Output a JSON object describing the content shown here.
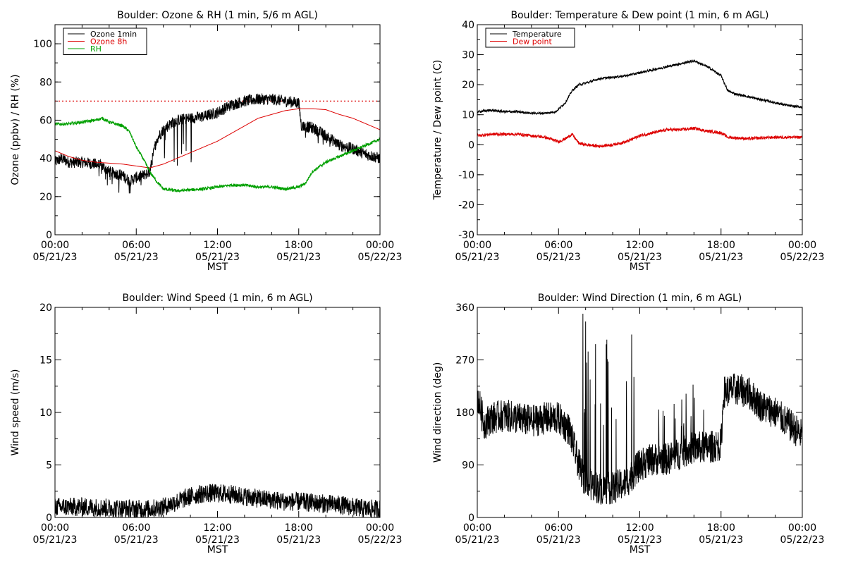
{
  "colors": {
    "black": "#000000",
    "red": "#dd0000",
    "green": "#00a000"
  },
  "chart_data": [
    {
      "id": "ozone_rh",
      "type": "line",
      "title": "Boulder: Ozone & RH (1 min, 5/6 m AGL)",
      "ylabel": "Ozone (ppbv) / RH (%)",
      "xlabel": "MST",
      "xlim_hours": [
        0,
        24
      ],
      "ylim": [
        0,
        110
      ],
      "yticks": [
        0,
        20,
        40,
        60,
        80,
        100
      ],
      "xticks": [
        {
          "time": "00:00",
          "date": "05/21/23"
        },
        {
          "time": "06:00",
          "date": "05/21/23"
        },
        {
          "time": "12:00",
          "date": "05/21/23"
        },
        {
          "time": "18:00",
          "date": "05/21/23"
        },
        {
          "time": "00:00",
          "date": "05/22/23"
        }
      ],
      "reference_line": {
        "y": 70,
        "color": "#dd0000",
        "style": "dotted"
      },
      "legend": "top-left",
      "series": [
        {
          "name": "Ozone 1min",
          "color": "#000000",
          "noise": 3,
          "spikes": [
            [
              7.5,
              10.5,
              -15,
              0.06
            ],
            [
              3.0,
              7.0,
              -5,
              0.05
            ],
            [
              18.5,
              21.0,
              -4,
              0.05
            ]
          ],
          "points": [
            [
              0,
              38
            ],
            [
              0.5,
              40
            ],
            [
              1,
              38
            ],
            [
              2,
              38
            ],
            [
              3,
              37
            ],
            [
              3.5,
              36
            ],
            [
              4,
              33
            ],
            [
              5,
              31
            ],
            [
              5.5,
              28
            ],
            [
              6,
              30
            ],
            [
              6.5,
              31
            ],
            [
              7,
              33
            ],
            [
              7.2,
              40
            ],
            [
              7.5,
              50
            ],
            [
              8,
              55
            ],
            [
              8.5,
              58
            ],
            [
              9,
              60
            ],
            [
              10,
              61
            ],
            [
              11,
              62
            ],
            [
              12,
              64
            ],
            [
              13,
              68
            ],
            [
              14,
              70
            ],
            [
              15,
              71
            ],
            [
              16,
              71
            ],
            [
              17,
              70
            ],
            [
              18,
              69
            ],
            [
              18.2,
              57
            ],
            [
              19,
              56
            ],
            [
              20,
              52
            ],
            [
              21,
              47
            ],
            [
              22,
              45
            ],
            [
              23,
              42
            ],
            [
              24,
              40
            ]
          ]
        },
        {
          "name": "Ozone 8h",
          "color": "#dd0000",
          "noise": 0,
          "points": [
            [
              0,
              44
            ],
            [
              1,
              41
            ],
            [
              2,
              39
            ],
            [
              3,
              38
            ],
            [
              4,
              37.5
            ],
            [
              5,
              37
            ],
            [
              6,
              36
            ],
            [
              7,
              35
            ],
            [
              8,
              37
            ],
            [
              9,
              40
            ],
            [
              10,
              43
            ],
            [
              11,
              46
            ],
            [
              12,
              49
            ],
            [
              13,
              53
            ],
            [
              14,
              57
            ],
            [
              15,
              61
            ],
            [
              16,
              63
            ],
            [
              17,
              65
            ],
            [
              18,
              66
            ],
            [
              19,
              66
            ],
            [
              20,
              65.5
            ],
            [
              21,
              63
            ],
            [
              22,
              61
            ],
            [
              23,
              58
            ],
            [
              24,
              55
            ]
          ]
        },
        {
          "name": "RH",
          "color": "#00a000",
          "noise": 0.8,
          "points": [
            [
              0,
              58
            ],
            [
              1,
              58
            ],
            [
              2,
              59
            ],
            [
              3,
              60
            ],
            [
              3.5,
              61
            ],
            [
              4,
              59
            ],
            [
              5,
              57
            ],
            [
              5.5,
              54
            ],
            [
              6,
              46
            ],
            [
              6.5,
              40
            ],
            [
              7,
              33
            ],
            [
              7.5,
              28
            ],
            [
              8,
              24
            ],
            [
              9,
              23
            ],
            [
              10,
              23.5
            ],
            [
              11,
              24
            ],
            [
              12,
              25
            ],
            [
              13,
              26
            ],
            [
              14,
              26
            ],
            [
              15,
              25
            ],
            [
              16,
              25
            ],
            [
              17,
              24
            ],
            [
              18,
              25
            ],
            [
              18.5,
              27
            ],
            [
              19,
              33
            ],
            [
              20,
              38
            ],
            [
              21,
              41
            ],
            [
              22,
              44
            ],
            [
              23,
              47
            ],
            [
              24,
              50
            ]
          ]
        }
      ]
    },
    {
      "id": "temp_dew",
      "type": "line",
      "title": "Boulder: Temperature & Dew point (1 min, 6 m AGL)",
      "ylabel": "Temperature / Dew point (C)",
      "xlabel": "MST",
      "xlim_hours": [
        0,
        24
      ],
      "ylim": [
        -30,
        40
      ],
      "yticks": [
        -30,
        -20,
        -10,
        0,
        10,
        20,
        30,
        40
      ],
      "xticks": [
        {
          "time": "00:00",
          "date": "05/21/23"
        },
        {
          "time": "06:00",
          "date": "05/21/23"
        },
        {
          "time": "12:00",
          "date": "05/21/23"
        },
        {
          "time": "18:00",
          "date": "05/21/23"
        },
        {
          "time": "00:00",
          "date": "05/22/23"
        }
      ],
      "legend": "top-left",
      "series": [
        {
          "name": "Temperature",
          "color": "#000000",
          "noise": 0.4,
          "points": [
            [
              0,
              11
            ],
            [
              1,
              11.5
            ],
            [
              2,
              11
            ],
            [
              3,
              11
            ],
            [
              4,
              10.5
            ],
            [
              5,
              10.5
            ],
            [
              5.8,
              11
            ],
            [
              6.5,
              14
            ],
            [
              7,
              18
            ],
            [
              7.5,
              20
            ],
            [
              8,
              20.5
            ],
            [
              9,
              22
            ],
            [
              10,
              22.5
            ],
            [
              11,
              23
            ],
            [
              12,
              24
            ],
            [
              13,
              25
            ],
            [
              14,
              26
            ],
            [
              15,
              27
            ],
            [
              16,
              28
            ],
            [
              17,
              26
            ],
            [
              18,
              23
            ],
            [
              18.5,
              18
            ],
            [
              19,
              17
            ],
            [
              20,
              16
            ],
            [
              21,
              15
            ],
            [
              22,
              14
            ],
            [
              23,
              13
            ],
            [
              24,
              12.5
            ]
          ]
        },
        {
          "name": "Dew point",
          "color": "#dd0000",
          "noise": 0.5,
          "points": [
            [
              0,
              3
            ],
            [
              1,
              3.5
            ],
            [
              2,
              3.5
            ],
            [
              3,
              3.5
            ],
            [
              4,
              3
            ],
            [
              5,
              2.5
            ],
            [
              6,
              1
            ],
            [
              6.5,
              2
            ],
            [
              7,
              3.5
            ],
            [
              7.5,
              0.5
            ],
            [
              8,
              0
            ],
            [
              9,
              -0.5
            ],
            [
              10,
              0
            ],
            [
              11,
              1
            ],
            [
              12,
              3
            ],
            [
              13,
              4
            ],
            [
              14,
              5
            ],
            [
              15,
              5
            ],
            [
              16,
              5.5
            ],
            [
              17,
              4.5
            ],
            [
              18,
              4
            ],
            [
              18.5,
              2.5
            ],
            [
              20,
              2
            ],
            [
              22,
              2.5
            ],
            [
              24,
              2.5
            ]
          ]
        }
      ]
    },
    {
      "id": "wind_speed",
      "type": "line",
      "title": "Boulder: Wind Speed (1 min, 6 m AGL)",
      "ylabel": "Wind speed (m/s)",
      "xlabel": "MST",
      "xlim_hours": [
        0,
        24
      ],
      "ylim": [
        0,
        20
      ],
      "yticks": [
        0,
        5,
        10,
        15,
        20
      ],
      "xticks": [
        {
          "time": "00:00",
          "date": "05/21/23"
        },
        {
          "time": "06:00",
          "date": "05/21/23"
        },
        {
          "time": "12:00",
          "date": "05/21/23"
        },
        {
          "time": "18:00",
          "date": "05/21/23"
        },
        {
          "time": "00:00",
          "date": "05/22/23"
        }
      ],
      "series": [
        {
          "color": "#000000",
          "noise": 0.9,
          "floor": 0,
          "points": [
            [
              0,
              1
            ],
            [
              2,
              1
            ],
            [
              4,
              0.9
            ],
            [
              6,
              0.8
            ],
            [
              7,
              0.8
            ],
            [
              8,
              1
            ],
            [
              9,
              1.5
            ],
            [
              10,
              2
            ],
            [
              11,
              2.3
            ],
            [
              12,
              2.3
            ],
            [
              13,
              2.2
            ],
            [
              14,
              2
            ],
            [
              15,
              1.8
            ],
            [
              16,
              1.7
            ],
            [
              17,
              1.5
            ],
            [
              18,
              1.5
            ],
            [
              19,
              1.4
            ],
            [
              20,
              1.3
            ],
            [
              21,
              1.2
            ],
            [
              22,
              1
            ],
            [
              23,
              0.8
            ],
            [
              24,
              0.8
            ]
          ]
        }
      ]
    },
    {
      "id": "wind_direction",
      "type": "line",
      "title": "Boulder: Wind Direction (1 min, 6 m AGL)",
      "ylabel": "Wind direction (deg)",
      "xlabel": "MST",
      "xlim_hours": [
        0,
        24
      ],
      "ylim": [
        0,
        360
      ],
      "yticks": [
        0,
        90,
        180,
        270,
        360
      ],
      "xticks": [
        {
          "time": "00:00",
          "date": "05/21/23"
        },
        {
          "time": "06:00",
          "date": "05/21/23"
        },
        {
          "time": "12:00",
          "date": "05/21/23"
        },
        {
          "time": "18:00",
          "date": "05/21/23"
        },
        {
          "time": "00:00",
          "date": "05/22/23"
        }
      ],
      "series": [
        {
          "color": "#000000",
          "noise": 28,
          "floor": 0,
          "ceil": 360,
          "spikes": [
            [
              7.8,
              11.6,
              180,
              0.07
            ],
            [
              12.5,
              17.5,
              60,
              0.04
            ]
          ],
          "points": [
            [
              0,
              210
            ],
            [
              0.5,
              160
            ],
            [
              1,
              170
            ],
            [
              2,
              175
            ],
            [
              3,
              170
            ],
            [
              4,
              165
            ],
            [
              5,
              170
            ],
            [
              6,
              170
            ],
            [
              6.8,
              150
            ],
            [
              7.5,
              90
            ],
            [
              8,
              60
            ],
            [
              9,
              50
            ],
            [
              10,
              50
            ],
            [
              11,
              60
            ],
            [
              12,
              90
            ],
            [
              13,
              100
            ],
            [
              14,
              100
            ],
            [
              15,
              110
            ],
            [
              16,
              120
            ],
            [
              17,
              120
            ],
            [
              18,
              125
            ],
            [
              18.2,
              215
            ],
            [
              19,
              220
            ],
            [
              20,
              215
            ],
            [
              21,
              190
            ],
            [
              22,
              180
            ],
            [
              23,
              160
            ],
            [
              24,
              140
            ]
          ]
        }
      ]
    }
  ]
}
